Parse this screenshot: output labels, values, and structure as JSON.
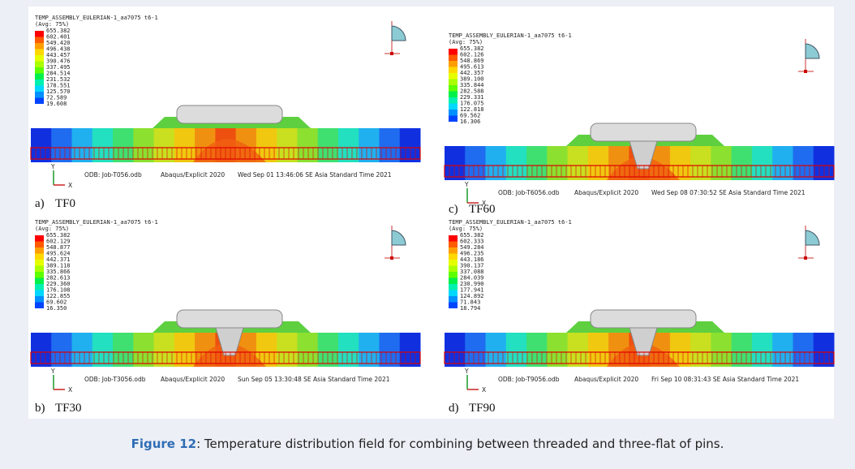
{
  "panels": [
    {
      "header": "TEMP_ASSEMBLY_EULERIAN-1_aa7075 t6-1",
      "avg": "(Avg: 75%)",
      "legend": [
        "655.382",
        "602.401",
        "549.420",
        "496.438",
        "443.457",
        "390.476",
        "337.495",
        "284.514",
        "231.532",
        "178.551",
        "125.570",
        "72.589",
        "19.608"
      ],
      "axis_y": "Y",
      "axis_x": "X",
      "odb": "ODB: Job-T056.odb",
      "software": "Abaqus/Explicit 2020",
      "date": "Wed Sep 01 13:46:06 SE Asia Standard Time 2021",
      "label": "a)",
      "name": "TF0"
    },
    {
      "header": "TEMP_ASSEMBLY_EULERIAN-1_aa7075 t6-1",
      "avg": "(Avg: 75%)",
      "legend": [
        "655.382",
        "602.126",
        "548.869",
        "495.613",
        "442.357",
        "389.100",
        "335.844",
        "282.588",
        "229.331",
        "176.075",
        "122.818",
        "69.562",
        "16.306"
      ],
      "axis_y": "Y",
      "axis_x": "X",
      "odb": "ODB: Job-T6056.odb",
      "software": "Abaqus/Explicit 2020",
      "date": "Wed Sep 08 07:30:52 SE Asia Standard Time 2021",
      "label": "c)",
      "name": "TF60"
    },
    {
      "header": "TEMP_ASSEMBLY_EULERIAN-1_aa7075 t6-1",
      "avg": "(Avg: 75%)",
      "legend": [
        "655.382",
        "602.129",
        "548.877",
        "495.624",
        "442.371",
        "389.118",
        "335.866",
        "282.613",
        "229.360",
        "176.108",
        "122.855",
        "69.602",
        "16.350"
      ],
      "axis_y": "Y",
      "axis_x": "X",
      "odb": "ODB: Job-T3056.odb",
      "software": "Abaqus/Explicit 2020",
      "date": "Sun Sep 05 13:30:48 SE Asia Standard Time 2021",
      "label": "b)",
      "name": "TF30"
    },
    {
      "header": "TEMP_ASSEMBLY_EULERIAN-1_aa7075 t6-1",
      "avg": "(Avg: 75%)",
      "legend": [
        "655.382",
        "602.333",
        "549.284",
        "496.235",
        "443.186",
        "390.137",
        "337.088",
        "284.039",
        "230.990",
        "177.941",
        "124.892",
        "71.843",
        "18.794"
      ],
      "axis_y": "Y",
      "axis_x": "X",
      "odb": "ODB: Job-T9056.odb",
      "software": "Abaqus/Explicit 2020",
      "date": "Fri Sep 10 08:31:43 SE Asia Standard Time 2021",
      "label": "d)",
      "name": "TF90"
    }
  ],
  "caption": {
    "label": "Figure 12",
    "text": ": Temperature distribution field for combining between threaded and three-flat of pins."
  }
}
